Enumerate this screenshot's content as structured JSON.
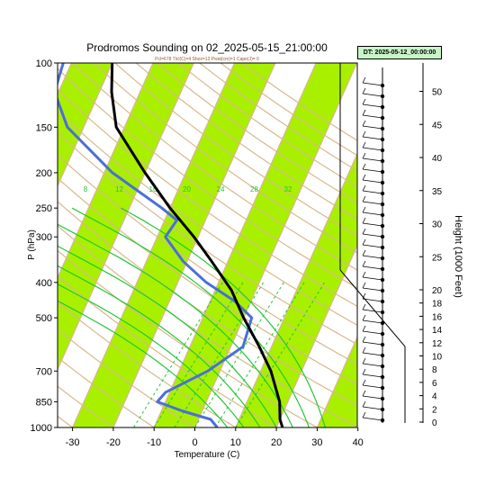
{
  "chart_data": {
    "type": "skew-t",
    "title": "Prodromos Sounding on 02_2025-05-15_21:00:00",
    "subtitle": "Pcl=678 Tlcl(C)=4 Shox=12 Pwat(cm)=1 Cape(J)= 0",
    "stamp": "DT: 2025-05-12_00:00:00",
    "xlabel": "Temperature (C)",
    "ylabel": "P (hPa)",
    "y2label": "Height (1000 Feet)",
    "xticks": [
      "-30",
      "-20",
      "-10",
      "0",
      "10",
      "20",
      "30",
      "40"
    ],
    "yticks": [
      "100",
      "150",
      "200",
      "250",
      "300",
      "400",
      "500",
      "700",
      "850",
      "1000"
    ],
    "height_ticks": [
      "50",
      "45",
      "40",
      "35",
      "30",
      "25",
      "20",
      "18",
      "16",
      "14",
      "12",
      "10",
      "8",
      "6",
      "4",
      "2",
      "0"
    ],
    "mixing_ratio_labels": [
      "8",
      "12",
      "16",
      "20",
      "24",
      "28",
      "32"
    ],
    "pressure_range": [
      100,
      1000
    ],
    "temperature_range_at_surface": [
      -33,
      44
    ],
    "temperature_profile": [
      {
        "p": 1000,
        "t": 21.5
      },
      {
        "p": 950,
        "t": 20.0
      },
      {
        "p": 850,
        "t": 18.0
      },
      {
        "p": 700,
        "t": 12.5
      },
      {
        "p": 600,
        "t": 7.0
      },
      {
        "p": 500,
        "t": 0.0
      },
      {
        "p": 420,
        "t": -6.0
      },
      {
        "p": 350,
        "t": -14.0
      },
      {
        "p": 300,
        "t": -21.0
      },
      {
        "p": 250,
        "t": -30.0
      },
      {
        "p": 200,
        "t": -40.0
      },
      {
        "p": 150,
        "t": -52.0
      },
      {
        "p": 120,
        "t": -57.0
      },
      {
        "p": 100,
        "t": -60.0
      }
    ],
    "dewpoint_profile": [
      {
        "p": 1000,
        "t": 5.5
      },
      {
        "p": 950,
        "t": 3.0
      },
      {
        "p": 900,
        "t": -5.0
      },
      {
        "p": 850,
        "t": -12.0
      },
      {
        "p": 800,
        "t": -11.0
      },
      {
        "p": 700,
        "t": -3.0
      },
      {
        "p": 600,
        "t": 3.0
      },
      {
        "p": 500,
        "t": 2.0
      },
      {
        "p": 450,
        "t": -4.0
      },
      {
        "p": 400,
        "t": -13.0
      },
      {
        "p": 350,
        "t": -21.0
      },
      {
        "p": 300,
        "t": -28.0
      },
      {
        "p": 270,
        "t": -27.0
      },
      {
        "p": 250,
        "t": -32.0
      },
      {
        "p": 200,
        "t": -48.0
      },
      {
        "p": 150,
        "t": -64.0
      },
      {
        "p": 120,
        "t": -71.0
      },
      {
        "p": 100,
        "t": -72.0
      }
    ],
    "colors": {
      "temperature": "#000000",
      "dewpoint": "#4a6fd8",
      "band": "#a8f000",
      "isotherm": "#d9b88a",
      "mixing_ratio": "#22c833",
      "wind": "#000000"
    }
  }
}
